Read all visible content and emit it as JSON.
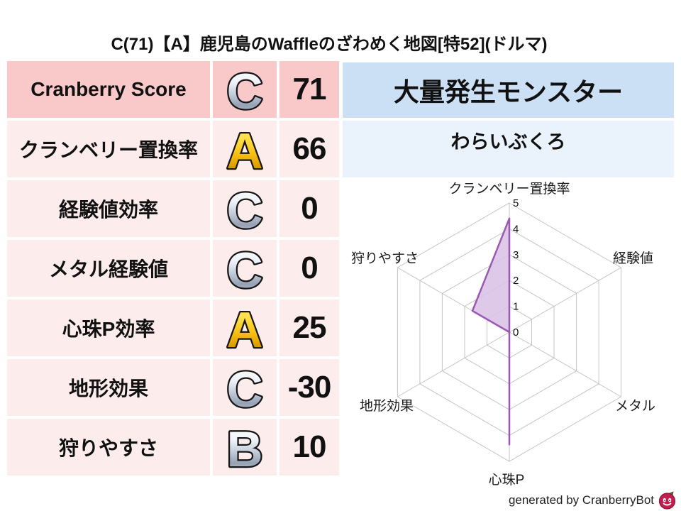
{
  "title": "C(71)【A】鹿児島のWaffleのざわめく地図[特52](ドルマ)",
  "table": {
    "rows": [
      {
        "label": "Cranberry Score",
        "grade": "C",
        "metal": "silver",
        "value": 71
      },
      {
        "label": "クランベリー置換率",
        "grade": "A",
        "metal": "gold",
        "value": 66
      },
      {
        "label": "経験値効率",
        "grade": "C",
        "metal": "silver",
        "value": 0
      },
      {
        "label": "メタル経験値",
        "grade": "C",
        "metal": "silver",
        "value": 0
      },
      {
        "label": "心珠P効率",
        "grade": "A",
        "metal": "gold",
        "value": 25
      },
      {
        "label": "地形効果",
        "grade": "C",
        "metal": "silver",
        "value": -30
      },
      {
        "label": "狩りやすさ",
        "grade": "B",
        "metal": "silver",
        "value": 10
      }
    ]
  },
  "monster": {
    "header_label": "大量発生モンスター",
    "name": "わらいぶくろ"
  },
  "footer": {
    "credit": "generated by CranberryBot",
    "icon": "cranberry-slime-icon"
  },
  "colors": {
    "pink_header": "#f9c9ca",
    "pink_row": "#fdecec",
    "blue_header": "#cce0f5",
    "blue_panel": "#eaf2fc",
    "radar_stroke": "#9b59b6",
    "radar_fill": "#d9c2e6",
    "radar_grid": "#c4c4c4",
    "gold": "#f0b400",
    "silver": "#aab4c4"
  },
  "chart_data": {
    "type": "radar",
    "title": "",
    "categories": [
      "クランベリー置換率",
      "経験値",
      "メタル",
      "心珠P",
      "地形効果",
      "狩りやすさ"
    ],
    "values": [
      4.4,
      0,
      0,
      4.35,
      0,
      1.65
    ],
    "ticks": [
      0,
      1,
      2,
      3,
      4,
      5
    ],
    "range": [
      0,
      5
    ],
    "grid": true,
    "legend": false
  }
}
